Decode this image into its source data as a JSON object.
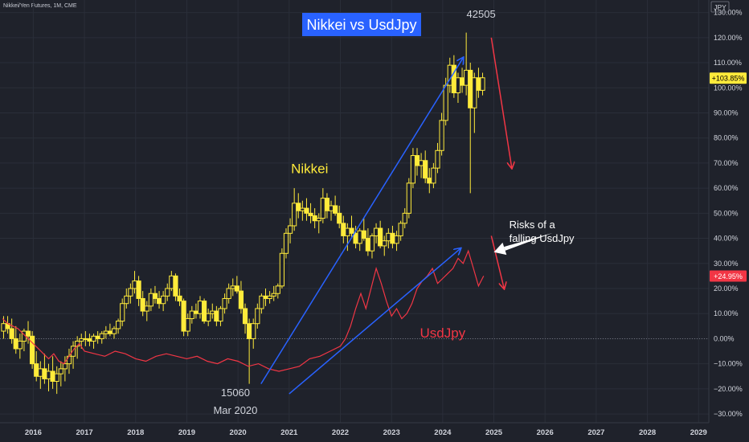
{
  "header": {
    "symbol_line": "Nikkei/Yen Futures, 1M, CME"
  },
  "chart_data": {
    "type": "candlestick",
    "title": "Nikkei vs UsdJpy",
    "currency_label": "JPY",
    "colors": {
      "background": "#1f222b",
      "grid": "#2a2e39",
      "candle_up": "#ffeb3b",
      "candle_down": "#ffeb3b",
      "usdjpy_line": "#f23645",
      "arrow_blue": "#2962ff",
      "arrow_red": "#f23645",
      "title_bg": "#2962ff",
      "nikkei_badge": "#ffeb3b",
      "usdjpy_badge": "#f23645",
      "axis_text": "#d1d4dc"
    },
    "x_axis": {
      "ticks": [
        "2016",
        "2017",
        "2018",
        "2019",
        "2020",
        "2021",
        "2022",
        "2023",
        "2024",
        "2025",
        "2026",
        "2027",
        "2028",
        "2029"
      ],
      "range": [
        2015.35,
        2029.2
      ]
    },
    "y_axis": {
      "unit": "%",
      "range": [
        -33.5,
        135
      ],
      "ticks": [
        "130.00%",
        "120.00%",
        "110.00%",
        "100.00%",
        "90.00%",
        "80.00%",
        "70.00%",
        "60.00%",
        "50.00%",
        "40.00%",
        "30.00%",
        "20.00%",
        "10.00%",
        "0.00%",
        "−10.00%",
        "−20.00%",
        "−30.00%"
      ],
      "tick_values": [
        130,
        120,
        110,
        100,
        90,
        80,
        70,
        60,
        50,
        40,
        30,
        20,
        10,
        0,
        -10,
        -20,
        -30
      ]
    },
    "current_values": [
      {
        "series": "Nikkei",
        "label": "+103.85%",
        "value": 103.85
      },
      {
        "series": "UsdJpy",
        "label": "+24.95%",
        "value": 24.95
      }
    ],
    "annotations": [
      {
        "text": "Nikkei",
        "x": 2021.4,
        "y": 66,
        "color": "#ffeb3b"
      },
      {
        "text": "UsdJpy",
        "x": 2024.0,
        "y": 0.5,
        "color": "#f23645"
      },
      {
        "text": "42505",
        "x": 2024.75,
        "y": 128,
        "color": "#d1d4dc"
      },
      {
        "text": "15060",
        "x": 2019.95,
        "y": -23,
        "color": "#d1d4dc"
      },
      {
        "text": "Mar 2020",
        "x": 2019.95,
        "y": -30,
        "color": "#d1d4dc"
      },
      {
        "text": "Risks of a",
        "x": 2025.3,
        "y": 44,
        "color": "#ffffff"
      },
      {
        "text": "falling UsdJpy",
        "x": 2025.3,
        "y": 38.5,
        "color": "#ffffff"
      }
    ],
    "arrows": [
      {
        "name": "nikkei-trend-arrow",
        "color": "#2962ff",
        "from": [
          2020.45,
          -18
        ],
        "to": [
          2024.4,
          112
        ]
      },
      {
        "name": "usdjpy-trend-arrow",
        "color": "#2962ff",
        "from": [
          2021.0,
          -22
        ],
        "to": [
          2024.35,
          36
        ]
      },
      {
        "name": "nikkei-drop-arrow",
        "color": "#f23645",
        "from": [
          2024.95,
          120
        ],
        "to": [
          2025.35,
          68
        ]
      },
      {
        "name": "usdjpy-drop-arrow",
        "color": "#f23645",
        "from": [
          2024.95,
          41
        ],
        "to": [
          2025.2,
          20
        ]
      },
      {
        "name": "risk-callout-arrow",
        "color": "#ffffff",
        "from": [
          2026.15,
          42
        ],
        "to": [
          2025.0,
          34.5
        ]
      }
    ],
    "usdjpy_series": {
      "name": "UsdJpy",
      "x": [
        2015.4,
        2015.5,
        2015.6,
        2015.7,
        2015.8,
        2015.9,
        2016.0,
        2016.1,
        2016.2,
        2016.3,
        2016.4,
        2016.5,
        2016.6,
        2016.7,
        2016.8,
        2016.9,
        2017.0,
        2017.2,
        2017.4,
        2017.6,
        2017.8,
        2018.0,
        2018.2,
        2018.4,
        2018.6,
        2018.8,
        2019.0,
        2019.2,
        2019.4,
        2019.6,
        2019.8,
        2020.0,
        2020.2,
        2020.4,
        2020.6,
        2020.8,
        2021.0,
        2021.2,
        2021.4,
        2021.6,
        2021.8,
        2022.0,
        2022.1,
        2022.2,
        2022.3,
        2022.4,
        2022.5,
        2022.6,
        2022.7,
        2022.8,
        2022.9,
        2023.0,
        2023.1,
        2023.2,
        2023.3,
        2023.4,
        2023.5,
        2023.6,
        2023.7,
        2023.8,
        2023.9,
        2024.0,
        2024.1,
        2024.2,
        2024.3,
        2024.4,
        2024.5,
        2024.6,
        2024.7,
        2024.8
      ],
      "y": [
        8,
        6,
        5,
        4,
        2,
        0,
        -2,
        -4,
        -6,
        -8,
        -6,
        -9,
        -10,
        -7,
        -4,
        -2,
        -5,
        -6,
        -7,
        -5,
        -6,
        -8,
        -9,
        -7,
        -6,
        -7,
        -8,
        -7,
        -9,
        -10,
        -8,
        -9,
        -11,
        -10,
        -12,
        -13,
        -12,
        -11,
        -8,
        -7,
        -5,
        -3,
        0,
        5,
        12,
        18,
        12,
        20,
        28,
        22,
        15,
        9,
        12,
        8,
        10,
        14,
        20,
        23,
        25,
        28,
        22,
        24,
        26,
        28,
        32,
        30,
        35,
        28,
        21,
        25
      ]
    },
    "nikkei_candles": [
      [
        2015.42,
        3,
        9,
        0,
        6
      ],
      [
        2015.5,
        6,
        9,
        2,
        4
      ],
      [
        2015.58,
        4,
        8,
        -2,
        0
      ],
      [
        2015.66,
        0,
        5,
        -6,
        -4
      ],
      [
        2015.74,
        -4,
        2,
        -8,
        -1
      ],
      [
        2015.82,
        -1,
        4,
        -5,
        3
      ],
      [
        2015.9,
        3,
        7,
        -2,
        1
      ],
      [
        2015.98,
        1,
        3,
        -12,
        -10
      ],
      [
        2016.06,
        -10,
        -5,
        -17,
        -15
      ],
      [
        2016.14,
        -15,
        -9,
        -20,
        -12
      ],
      [
        2016.22,
        -12,
        -6,
        -18,
        -16
      ],
      [
        2016.3,
        -16,
        -10,
        -21,
        -13
      ],
      [
        2016.38,
        -13,
        -7,
        -20,
        -17
      ],
      [
        2016.46,
        -17,
        -11,
        -22,
        -14
      ],
      [
        2016.54,
        -14,
        -9,
        -19,
        -12
      ],
      [
        2016.62,
        -12,
        -7,
        -17,
        -10
      ],
      [
        2016.7,
        -10,
        -4,
        -14,
        -7
      ],
      [
        2016.78,
        -7,
        -1,
        -12,
        -3
      ],
      [
        2016.86,
        -3,
        1,
        -8,
        -1
      ],
      [
        2016.94,
        -1,
        2,
        -4,
        0
      ],
      [
        2017.02,
        0,
        3,
        -3,
        0
      ],
      [
        2017.1,
        0,
        2,
        -3,
        -1
      ],
      [
        2017.18,
        -1,
        2,
        -4,
        1
      ],
      [
        2017.26,
        1,
        3,
        -2,
        0
      ],
      [
        2017.34,
        0,
        3,
        -2,
        2
      ],
      [
        2017.42,
        2,
        5,
        0,
        3
      ],
      [
        2017.5,
        3,
        6,
        1,
        2
      ],
      [
        2017.58,
        2,
        5,
        0,
        4
      ],
      [
        2017.66,
        4,
        8,
        2,
        7
      ],
      [
        2017.74,
        7,
        16,
        5,
        14
      ],
      [
        2017.82,
        14,
        20,
        12,
        17
      ],
      [
        2017.9,
        17,
        22,
        14,
        20
      ],
      [
        2017.98,
        20,
        27,
        18,
        23
      ],
      [
        2018.06,
        23,
        25,
        13,
        16
      ],
      [
        2018.14,
        16,
        19,
        9,
        11
      ],
      [
        2018.22,
        11,
        15,
        7,
        13
      ],
      [
        2018.3,
        13,
        20,
        11,
        18
      ],
      [
        2018.38,
        18,
        21,
        14,
        16
      ],
      [
        2018.46,
        16,
        19,
        12,
        14
      ],
      [
        2018.54,
        14,
        19,
        11,
        17
      ],
      [
        2018.62,
        17,
        22,
        15,
        20
      ],
      [
        2018.7,
        20,
        27,
        19,
        25
      ],
      [
        2018.78,
        25,
        26,
        15,
        17
      ],
      [
        2018.86,
        17,
        20,
        13,
        15
      ],
      [
        2018.94,
        15,
        16,
        1,
        3
      ],
      [
        2019.02,
        3,
        10,
        1,
        8
      ],
      [
        2019.1,
        8,
        13,
        6,
        11
      ],
      [
        2019.18,
        11,
        14,
        8,
        10
      ],
      [
        2019.26,
        10,
        17,
        8,
        15
      ],
      [
        2019.34,
        15,
        16,
        6,
        7
      ],
      [
        2019.42,
        7,
        12,
        5,
        10
      ],
      [
        2019.5,
        10,
        14,
        8,
        11
      ],
      [
        2019.58,
        11,
        13,
        5,
        7
      ],
      [
        2019.66,
        7,
        13,
        5,
        12
      ],
      [
        2019.74,
        12,
        18,
        10,
        16
      ],
      [
        2019.82,
        16,
        22,
        14,
        20
      ],
      [
        2019.9,
        20,
        24,
        17,
        21
      ],
      [
        2019.98,
        21,
        25,
        18,
        19
      ],
      [
        2020.06,
        19,
        23,
        10,
        12
      ],
      [
        2020.14,
        12,
        14,
        2,
        6
      ],
      [
        2020.22,
        6,
        8,
        -18,
        0
      ],
      [
        2020.3,
        0,
        8,
        -4,
        6
      ],
      [
        2020.38,
        6,
        14,
        4,
        12
      ],
      [
        2020.46,
        12,
        18,
        10,
        17
      ],
      [
        2020.54,
        17,
        20,
        13,
        16
      ],
      [
        2020.62,
        16,
        19,
        14,
        17
      ],
      [
        2020.7,
        17,
        21,
        15,
        18
      ],
      [
        2020.78,
        18,
        22,
        16,
        21
      ],
      [
        2020.86,
        21,
        36,
        20,
        34
      ],
      [
        2020.94,
        34,
        44,
        32,
        42
      ],
      [
        2021.02,
        42,
        48,
        38,
        45
      ],
      [
        2021.1,
        45,
        60,
        43,
        54
      ],
      [
        2021.18,
        54,
        58,
        48,
        51
      ],
      [
        2021.26,
        51,
        55,
        47,
        52
      ],
      [
        2021.34,
        52,
        56,
        47,
        50
      ],
      [
        2021.42,
        50,
        54,
        46,
        49
      ],
      [
        2021.5,
        49,
        52,
        44,
        47
      ],
      [
        2021.58,
        47,
        50,
        42,
        48
      ],
      [
        2021.66,
        48,
        60,
        46,
        56
      ],
      [
        2021.74,
        56,
        58,
        48,
        51
      ],
      [
        2021.82,
        51,
        55,
        47,
        53
      ],
      [
        2021.9,
        53,
        57,
        49,
        50
      ],
      [
        2021.98,
        50,
        53,
        44,
        46
      ],
      [
        2022.06,
        46,
        49,
        38,
        41
      ],
      [
        2022.14,
        41,
        46,
        35,
        44
      ],
      [
        2022.22,
        44,
        49,
        40,
        42
      ],
      [
        2022.3,
        42,
        45,
        36,
        38
      ],
      [
        2022.38,
        38,
        44,
        35,
        43
      ],
      [
        2022.46,
        43,
        48,
        39,
        40
      ],
      [
        2022.54,
        40,
        44,
        33,
        35
      ],
      [
        2022.62,
        35,
        42,
        32,
        41
      ],
      [
        2022.7,
        41,
        46,
        38,
        44
      ],
      [
        2022.78,
        44,
        47,
        36,
        37
      ],
      [
        2022.86,
        37,
        41,
        33,
        39
      ],
      [
        2022.94,
        39,
        44,
        36,
        42
      ],
      [
        2023.02,
        42,
        45,
        36,
        38
      ],
      [
        2023.1,
        38,
        43,
        35,
        41
      ],
      [
        2023.18,
        41,
        47,
        39,
        46
      ],
      [
        2023.26,
        46,
        52,
        44,
        50
      ],
      [
        2023.34,
        50,
        64,
        48,
        62
      ],
      [
        2023.42,
        62,
        76,
        60,
        73
      ],
      [
        2023.5,
        73,
        76,
        65,
        69
      ],
      [
        2023.58,
        69,
        74,
        64,
        71
      ],
      [
        2023.66,
        71,
        75,
        62,
        64
      ],
      [
        2023.74,
        64,
        68,
        58,
        62
      ],
      [
        2023.82,
        62,
        70,
        60,
        68
      ],
      [
        2023.9,
        68,
        78,
        66,
        75
      ],
      [
        2023.98,
        75,
        90,
        73,
        87
      ],
      [
        2024.06,
        87,
        104,
        85,
        101
      ],
      [
        2024.14,
        101,
        112,
        98,
        109
      ],
      [
        2024.22,
        109,
        113,
        96,
        98
      ],
      [
        2024.3,
        98,
        106,
        94,
        104
      ],
      [
        2024.38,
        104,
        108,
        98,
        101
      ],
      [
        2024.46,
        101,
        122,
        97,
        107
      ],
      [
        2024.54,
        107,
        110,
        58,
        92
      ],
      [
        2024.62,
        92,
        106,
        82,
        104
      ],
      [
        2024.7,
        104,
        108,
        96,
        99
      ],
      [
        2024.78,
        99,
        106,
        97,
        104
      ]
    ]
  }
}
